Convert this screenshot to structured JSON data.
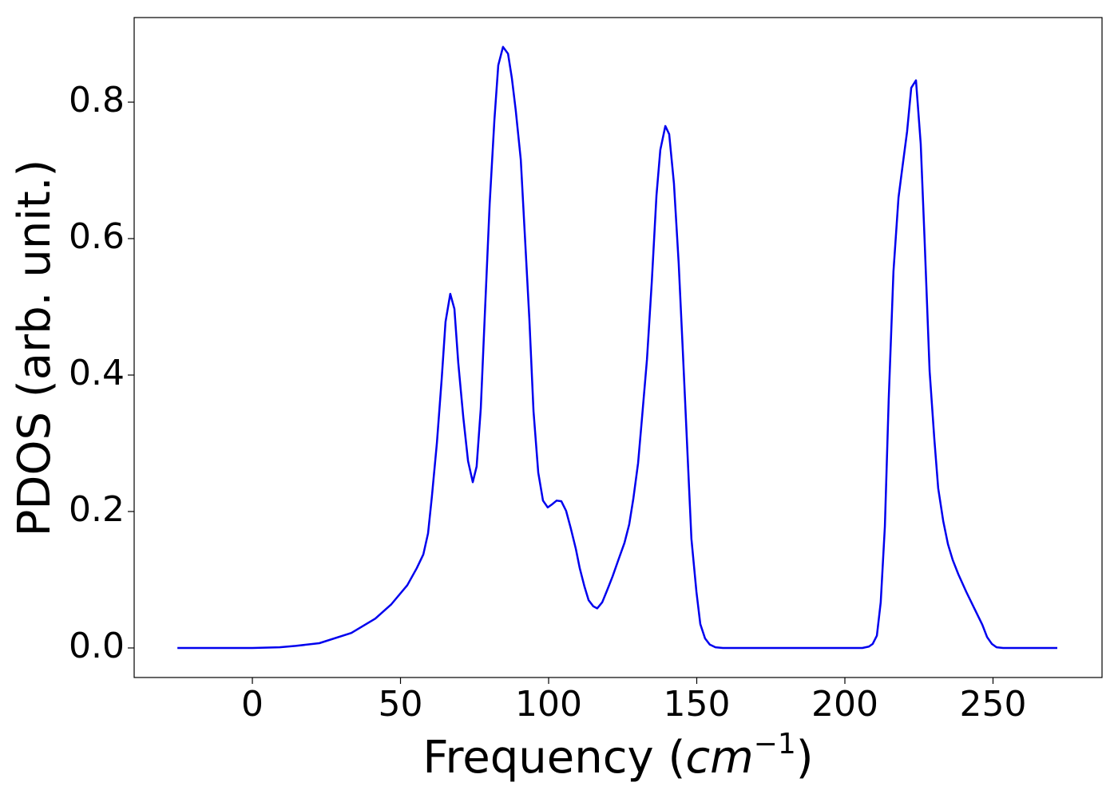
{
  "chart_data": {
    "type": "line",
    "xlabel": [
      "Frequency (",
      "cm",
      "−1",
      ")"
    ],
    "ylabel": "PDOS (arb. unit.)",
    "color": "#0000ee",
    "x": [
      -25.3,
      0,
      9.2,
      14.6,
      22.6,
      33.4,
      41.5,
      46.9,
      52.3,
      55.5,
      57.7,
      59.3,
      60.6,
      62.3,
      63.9,
      65.2,
      66.8,
      68.2,
      69.5,
      71.2,
      72.8,
      74.4,
      75.7,
      77.1,
      78.4,
      80.1,
      81.7,
      83.0,
      84.6,
      86.3,
      87.6,
      88.9,
      90.6,
      91.9,
      93.5,
      94.9,
      96.5,
      98.1,
      99.7,
      101.3,
      102.7,
      104.3,
      105.9,
      107.5,
      109.2,
      110.5,
      112.1,
      113.5,
      115.1,
      116.4,
      118.1,
      119.7,
      121.6,
      123.7,
      125.6,
      127.2,
      128.6,
      130.2,
      131.5,
      133.2,
      134.8,
      136.4,
      137.7,
      139.4,
      140.7,
      142.3,
      143.9,
      145.3,
      146.9,
      148.2,
      149.9,
      151.2,
      152.8,
      154.4,
      156.3,
      158.8,
      205.9,
      208.1,
      209.4,
      210.8,
      212.1,
      213.5,
      214.8,
      216.4,
      218.1,
      219.4,
      221.0,
      222.4,
      224.0,
      225.6,
      226.9,
      228.6,
      230.2,
      231.5,
      233.2,
      234.8,
      236.4,
      238.3,
      241.0,
      243.7,
      246.4,
      248.0,
      249.6,
      251.2,
      253.4,
      271.7
    ],
    "values": [
      0,
      0,
      0.001,
      0.003,
      0.007,
      0.022,
      0.043,
      0.064,
      0.092,
      0.117,
      0.137,
      0.168,
      0.222,
      0.301,
      0.394,
      0.478,
      0.519,
      0.497,
      0.418,
      0.338,
      0.274,
      0.243,
      0.266,
      0.351,
      0.482,
      0.651,
      0.774,
      0.854,
      0.881,
      0.871,
      0.835,
      0.788,
      0.716,
      0.611,
      0.482,
      0.347,
      0.257,
      0.216,
      0.206,
      0.211,
      0.216,
      0.215,
      0.201,
      0.175,
      0.145,
      0.117,
      0.09,
      0.07,
      0.061,
      0.058,
      0.067,
      0.084,
      0.105,
      0.131,
      0.154,
      0.181,
      0.219,
      0.271,
      0.336,
      0.423,
      0.535,
      0.663,
      0.73,
      0.765,
      0.753,
      0.681,
      0.564,
      0.435,
      0.283,
      0.16,
      0.082,
      0.035,
      0.014,
      0.005,
      0.001,
      0,
      0,
      0.002,
      0.006,
      0.018,
      0.067,
      0.178,
      0.365,
      0.552,
      0.66,
      0.704,
      0.757,
      0.821,
      0.832,
      0.739,
      0.599,
      0.406,
      0.306,
      0.234,
      0.186,
      0.152,
      0.129,
      0.108,
      0.082,
      0.058,
      0.034,
      0.016,
      0.006,
      0.001,
      0,
      0
    ],
    "xlim": [
      -39.9,
      286.8
    ],
    "ylim": [
      -0.0433,
      0.924
    ],
    "xticks": [
      0,
      50,
      100,
      150,
      200,
      250
    ],
    "yticks": [
      {
        "value": 0,
        "label": "0.0"
      },
      {
        "value": 0.2,
        "label": "0.2"
      },
      {
        "value": 0.4,
        "label": "0.4"
      },
      {
        "value": 0.6,
        "label": "0.6"
      },
      {
        "value": 0.8,
        "label": "0.8"
      }
    ],
    "grid": false
  }
}
